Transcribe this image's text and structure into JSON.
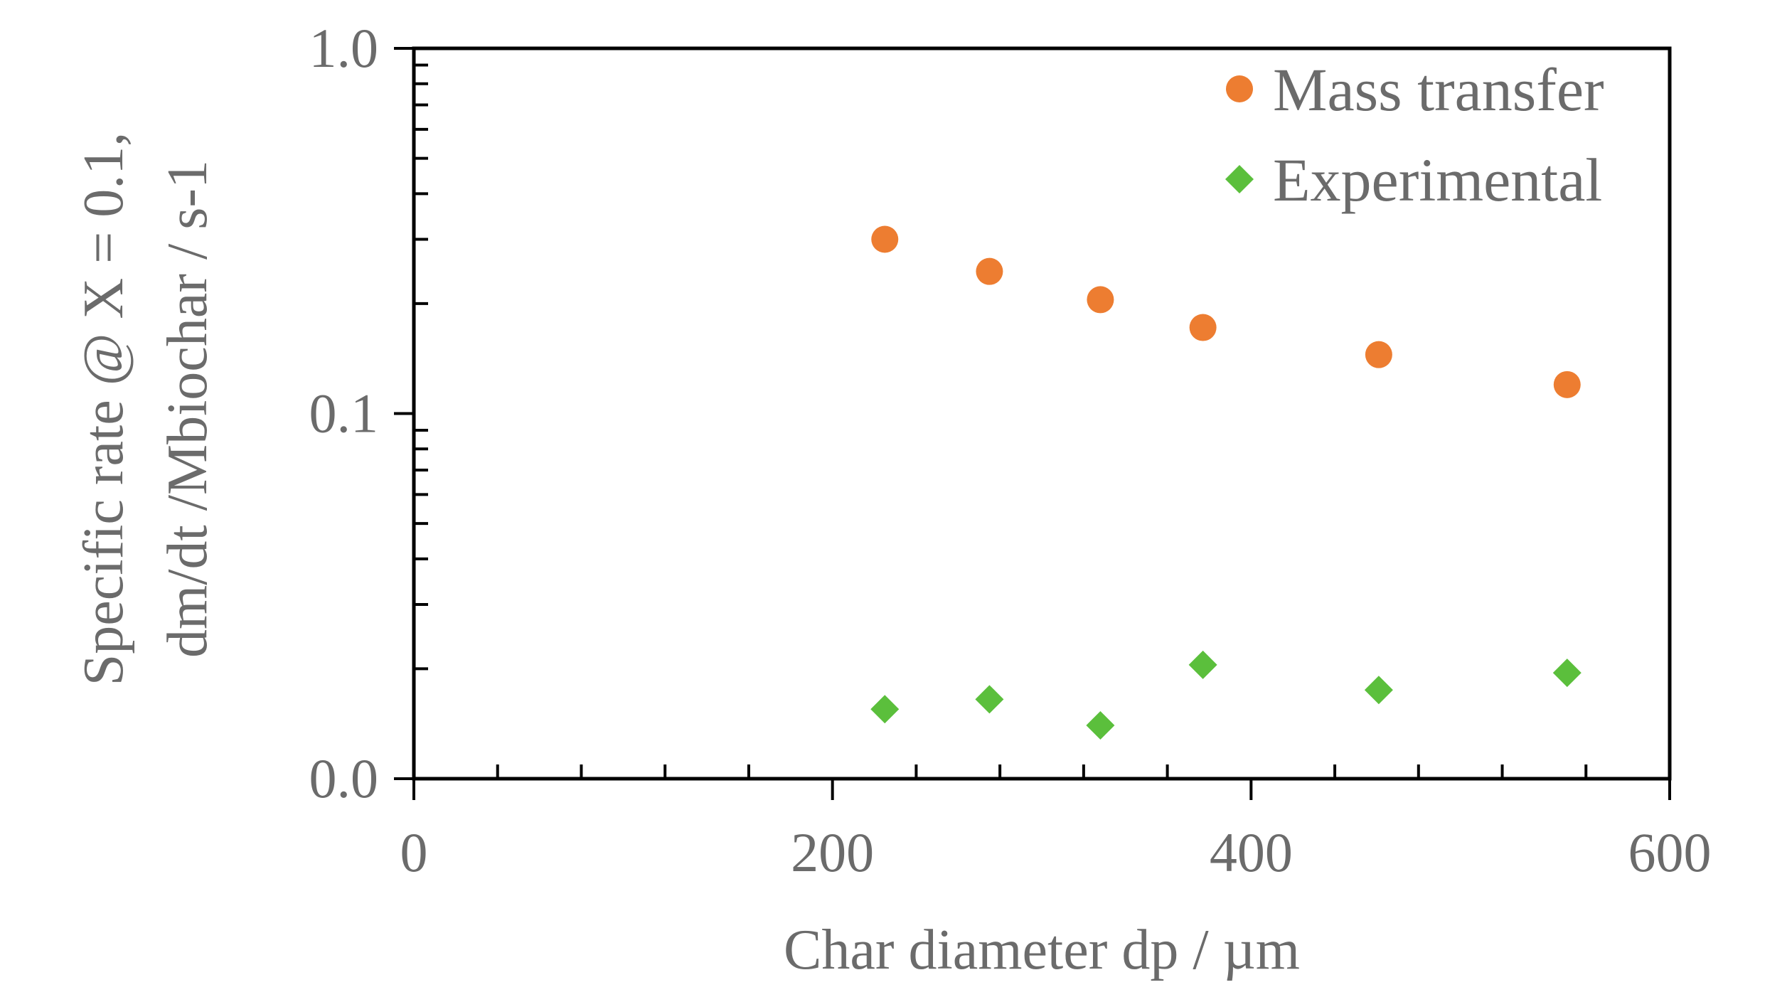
{
  "chart_data": {
    "type": "scatter",
    "title": "",
    "xlabel": "Char diameter dp / µm",
    "ylabel_lines": [
      "Specific rate @ X = 0.1,",
      "dm/dt /Mbiochar   /   s-1"
    ],
    "xlim": [
      0,
      600
    ],
    "ylim": [
      0.01,
      1.0
    ],
    "yscale": "log",
    "xticks": [
      0,
      200,
      400,
      600
    ],
    "xtick_labels": [
      "0",
      "200",
      "400",
      "600"
    ],
    "yticks": [
      0.01,
      0.1,
      1.0
    ],
    "ytick_labels": [
      "0.0",
      "0.1",
      "1.0"
    ],
    "grid": false,
    "legend_position": "top-right",
    "series": [
      {
        "name": "Mass transfer",
        "marker": "circle",
        "color": "#ed7d31",
        "points": [
          {
            "x": 225,
            "y": 0.3
          },
          {
            "x": 275,
            "y": 0.245
          },
          {
            "x": 328,
            "y": 0.205
          },
          {
            "x": 377,
            "y": 0.172
          },
          {
            "x": 461,
            "y": 0.145
          },
          {
            "x": 551,
            "y": 0.12
          }
        ]
      },
      {
        "name": "Experimental",
        "marker": "diamond",
        "color": "#5bbf3c",
        "points": [
          {
            "x": 225,
            "y": 0.0155
          },
          {
            "x": 275,
            "y": 0.0165
          },
          {
            "x": 328,
            "y": 0.014
          },
          {
            "x": 377,
            "y": 0.0205
          },
          {
            "x": 461,
            "y": 0.0175
          },
          {
            "x": 551,
            "y": 0.0195
          }
        ]
      }
    ]
  }
}
